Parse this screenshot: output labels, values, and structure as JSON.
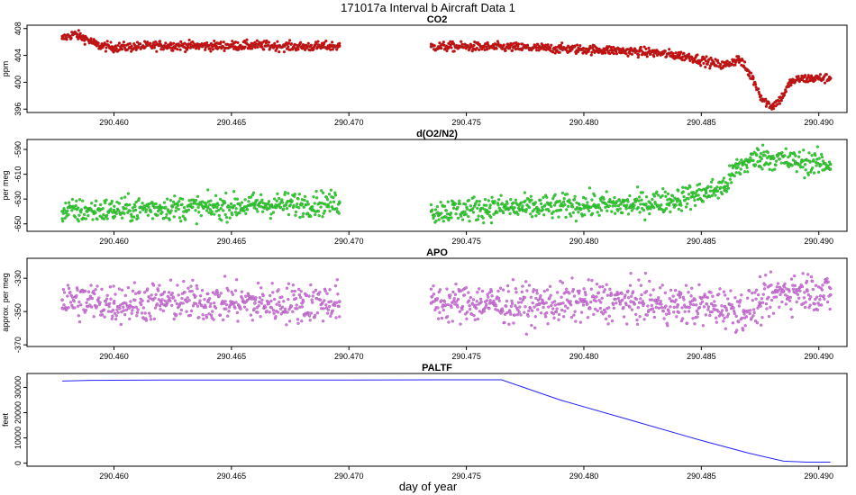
{
  "figure": {
    "title": "171017a   Interval b Aircraft Data 1",
    "xlabel": "day of year"
  },
  "chart_data": [
    {
      "type": "scatter",
      "title": "CO2",
      "ylabel": "ppm",
      "color": "#e00000",
      "xlim": [
        290.4563,
        290.4912
      ],
      "ylim": [
        395.5,
        408.5
      ],
      "xticks": [
        290.46,
        290.465,
        290.47,
        290.475,
        290.48,
        290.485,
        290.49
      ],
      "xtick_labels": [
        "290.460",
        "290.465",
        "290.470",
        "290.475",
        "290.480",
        "290.485",
        "290.490"
      ],
      "yticks": [
        396,
        400,
        404,
        408
      ],
      "ytick_labels": [
        "396",
        "400",
        "404",
        "408"
      ],
      "grid": false,
      "segments": [
        {
          "x": [
            290.4578,
            290.4583,
            290.4588,
            290.4593,
            290.46,
            290.461,
            290.462,
            290.464,
            290.466,
            290.468,
            290.4696
          ],
          "y": [
            406.5,
            407.2,
            406.5,
            405.5,
            405.2,
            405.3,
            405.5,
            405.4,
            405.5,
            405.3,
            405.4
          ]
        },
        {
          "x": [
            290.4735,
            290.475,
            290.477,
            290.479,
            290.481,
            290.483,
            290.4845,
            290.4855,
            290.486,
            290.4866,
            290.4872,
            290.4876,
            290.488,
            290.4884,
            290.4888,
            290.4892,
            290.49,
            290.4905
          ],
          "y": [
            405.3,
            405.3,
            405.2,
            405.0,
            404.8,
            404.4,
            403.8,
            402.8,
            402.5,
            403.5,
            400.5,
            397.5,
            396.4,
            397.6,
            400.0,
            400.5,
            400.6,
            400.6
          ]
        }
      ]
    },
    {
      "type": "scatter",
      "title": "d(O2/N2)",
      "ylabel": "per meg",
      "color": "#22dd22",
      "xlim": [
        290.4563,
        290.4912
      ],
      "ylim": [
        -656,
        -582
      ],
      "xticks": [
        290.46,
        290.465,
        290.47,
        290.475,
        290.48,
        290.485,
        290.49
      ],
      "xtick_labels": [
        "290.460",
        "290.465",
        "290.470",
        "290.475",
        "290.480",
        "290.485",
        "290.490"
      ],
      "yticks": [
        -650,
        -630,
        -610,
        -590
      ],
      "ytick_labels": [
        "-650",
        "-630",
        "-610",
        "-590"
      ],
      "grid": false,
      "segments": [
        {
          "x": [
            290.4578,
            290.46,
            290.462,
            290.464,
            290.466,
            290.468,
            290.4696
          ],
          "y": [
            -640,
            -639,
            -637,
            -637,
            -635,
            -634,
            -633
          ]
        },
        {
          "x": [
            290.4735,
            290.476,
            290.478,
            290.48,
            290.482,
            290.484,
            290.4852,
            290.486,
            290.4865,
            290.487,
            290.4875,
            290.488,
            290.489,
            290.4905
          ],
          "y": [
            -640,
            -637,
            -637,
            -635,
            -635,
            -630,
            -625,
            -620,
            -605,
            -600,
            -596,
            -597,
            -600,
            -602
          ]
        }
      ]
    },
    {
      "type": "scatter",
      "title": "APO",
      "ylabel": "approx. per meg",
      "color": "#e070f0",
      "xlim": [
        290.4563,
        290.4912
      ],
      "ylim": [
        -371,
        -318
      ],
      "xticks": [
        290.46,
        290.465,
        290.47,
        290.475,
        290.48,
        290.485,
        290.49
      ],
      "xtick_labels": [
        "290.460",
        "290.465",
        "290.470",
        "290.475",
        "290.480",
        "290.485",
        "290.490"
      ],
      "yticks": [
        -370,
        -350,
        -330
      ],
      "ytick_labels": [
        "-370",
        "-350",
        "-330"
      ],
      "grid": false,
      "segments": [
        {
          "x": [
            290.4578,
            290.46,
            290.462,
            290.464,
            290.466,
            290.468,
            290.4696
          ],
          "y": [
            -343,
            -345,
            -344,
            -344,
            -345,
            -345,
            -344
          ]
        },
        {
          "x": [
            290.4735,
            290.476,
            290.478,
            290.48,
            290.482,
            290.484,
            290.486,
            290.4868,
            290.4875,
            290.4885,
            290.4895,
            290.4905
          ],
          "y": [
            -345,
            -345,
            -346,
            -344,
            -344,
            -346,
            -347,
            -350,
            -345,
            -338,
            -337,
            -340
          ]
        }
      ]
    },
    {
      "type": "line",
      "title": "PALTF",
      "ylabel": "feet",
      "color": "#2222ff",
      "xlim": [
        290.4563,
        290.4912
      ],
      "ylim": [
        -1200,
        35500
      ],
      "xticks": [
        290.46,
        290.465,
        290.47,
        290.475,
        290.48,
        290.485,
        290.49
      ],
      "xtick_labels": [
        "290.460",
        "290.465",
        "290.470",
        "290.475",
        "290.480",
        "290.485",
        "290.490"
      ],
      "yticks": [
        0,
        10000,
        20000,
        30000
      ],
      "ytick_labels": [
        "0",
        "10000",
        "20000",
        "30000"
      ],
      "grid": false,
      "x": [
        290.4578,
        290.459,
        290.462,
        290.466,
        290.47,
        290.474,
        290.4765,
        290.479,
        290.482,
        290.485,
        290.487,
        290.4885,
        290.4895,
        290.4905
      ],
      "y": [
        32500,
        32800,
        32900,
        32900,
        32950,
        33000,
        33000,
        25000,
        17000,
        9000,
        4000,
        800,
        400,
        400
      ]
    }
  ]
}
